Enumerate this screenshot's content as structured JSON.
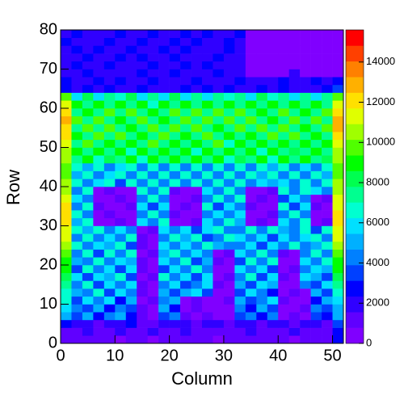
{
  "chart_data": {
    "type": "heatmap",
    "xlabel": "Column",
    "ylabel": "Row",
    "xlim": [
      0,
      52
    ],
    "ylim": [
      0,
      80
    ],
    "xticks": [
      0,
      10,
      20,
      30,
      40,
      50
    ],
    "yticks": [
      0,
      10,
      20,
      30,
      40,
      50,
      60,
      70,
      80
    ],
    "zlim": [
      0,
      15600
    ],
    "zticks": [
      0,
      2000,
      4000,
      6000,
      8000,
      10000,
      12000,
      14000
    ],
    "palette": [
      "#8000ff",
      "#6000ff",
      "#3000ff",
      "#0000ff",
      "#0040ff",
      "#0080ff",
      "#00b0ff",
      "#00e0ff",
      "#00ffd0",
      "#00ff90",
      "#00ff50",
      "#00ff00",
      "#50ff00",
      "#a0ff00",
      "#e0ff00",
      "#ffe000",
      "#ffb000",
      "#ff8000",
      "#ff4000",
      "#ff0000"
    ],
    "z": [
      [
        900,
        1200,
        800,
        1500,
        1100,
        700,
        1300,
        900,
        600,
        1000,
        1400,
        800,
        1200,
        900,
        700,
        1100,
        1300,
        800,
        1000,
        1500,
        900,
        700,
        1200,
        1000,
        800,
        2400
      ],
      [
        1500,
        1100,
        1800,
        1300,
        900,
        1600,
        1200,
        1000,
        2200,
        1400,
        800,
        1700,
        1100,
        1300,
        1500,
        900,
        1200,
        1600,
        1000,
        1400,
        1100,
        1800,
        900,
        1300,
        1200,
        2800
      ],
      [
        2600,
        1800,
        2200,
        1500,
        2000,
        1700,
        2400,
        900,
        1300,
        1900,
        1600,
        2100,
        1400,
        1800,
        2300,
        1500,
        2000,
        1700,
        1400,
        2200,
        1800,
        1300,
        1600,
        2000,
        1500,
        3200
      ],
      [
        5200,
        3400,
        4800,
        2600,
        3900,
        5200,
        3100,
        800,
        700,
        3600,
        4200,
        900,
        700,
        800,
        600,
        700,
        3200,
        4600,
        2800,
        3900,
        600,
        800,
        700,
        3500,
        2900,
        4800
      ],
      [
        5800,
        4600,
        3200,
        5400,
        2800,
        4400,
        3700,
        900,
        600,
        4800,
        3000,
        700,
        800,
        600,
        700,
        600,
        4400,
        2700,
        5000,
        3300,
        700,
        600,
        900,
        4100,
        3600,
        5400
      ],
      [
        6400,
        3800,
        5600,
        4200,
        6000,
        3000,
        5100,
        700,
        800,
        3900,
        5300,
        600,
        900,
        700,
        600,
        800,
        5200,
        3600,
        4300,
        6100,
        800,
        700,
        600,
        2900,
        4700,
        6200
      ],
      [
        7000,
        5200,
        4000,
        6300,
        3600,
        5700,
        4400,
        800,
        700,
        5000,
        3500,
        4800,
        6200,
        3300,
        700,
        600,
        3700,
        5900,
        4100,
        3000,
        600,
        800,
        700,
        5300,
        3800,
        6800
      ],
      [
        7600,
        4100,
        6600,
        3500,
        5900,
        4300,
        6100,
        900,
        600,
        4200,
        6000,
        3700,
        4500,
        5600,
        800,
        700,
        5400,
        3300,
        6200,
        4700,
        700,
        600,
        4300,
        3600,
        5900,
        7400
      ],
      [
        8200,
        6100,
        3700,
        5800,
        4900,
        6500,
        3400,
        700,
        800,
        6300,
        3900,
        5500,
        3200,
        6100,
        600,
        800,
        4000,
        6400,
        3500,
        5600,
        800,
        700,
        5800,
        4900,
        3700,
        8000
      ],
      [
        8600,
        3600,
        6900,
        4400,
        6200,
        3800,
        5500,
        800,
        700,
        3700,
        5800,
        4300,
        6600,
        3900,
        700,
        600,
        6100,
        4300,
        5700,
        3800,
        600,
        800,
        3900,
        6200,
        5100,
        8600
      ],
      [
        9200,
        5400,
        4500,
        7000,
        3900,
        5900,
        4700,
        900,
        600,
        5500,
        4200,
        6300,
        3800,
        5400,
        800,
        700,
        3700,
        6600,
        4200,
        6300,
        700,
        600,
        5700,
        4100,
        6500,
        9200
      ],
      [
        9800,
        4600,
        6300,
        3800,
        6700,
        4100,
        6400,
        700,
        800,
        4800,
        6600,
        3900,
        5900,
        4400,
        600,
        800,
        5800,
        3900,
        6800,
        4500,
        800,
        700,
        4600,
        6700,
        4200,
        9600
      ],
      [
        10400,
        6500,
        3900,
        6000,
        4800,
        6800,
        3700,
        800,
        700,
        6200,
        4000,
        5700,
        4300,
        6500,
        5300,
        3900,
        4500,
        6200,
        3800,
        5900,
        4200,
        6400,
        3900,
        5100,
        6800,
        10400
      ],
      [
        11000,
        4200,
        6900,
        4600,
        5900,
        3900,
        6300,
        900,
        600,
        4100,
        6400,
        4800,
        6600,
        3800,
        4400,
        6300,
        6200,
        4000,
        5700,
        3600,
        6100,
        4300,
        5800,
        6400,
        4500,
        11000
      ],
      [
        11600,
        6300,
        4800,
        6700,
        3900,
        5600,
        4400,
        700,
        800,
        5800,
        4600,
        6200,
        3700,
        5900,
        6700,
        4100,
        3900,
        6600,
        4500,
        6300,
        4800,
        3900,
        6300,
        3800,
        6400,
        11200
      ],
      [
        12000,
        4800,
        6500,
        700,
        600,
        800,
        700,
        5900,
        4100,
        6400,
        700,
        600,
        800,
        5600,
        4300,
        6800,
        4900,
        700,
        800,
        600,
        5700,
        4100,
        6300,
        700,
        800,
        11800
      ],
      [
        12400,
        6600,
        4200,
        600,
        800,
        700,
        600,
        4300,
        6600,
        3900,
        800,
        700,
        600,
        4200,
        6200,
        3900,
        6100,
        600,
        700,
        800,
        4300,
        6300,
        4000,
        600,
        700,
        12200
      ],
      [
        12000,
        4300,
        6800,
        800,
        700,
        600,
        800,
        6200,
        3800,
        6100,
        600,
        800,
        700,
        6400,
        3800,
        5900,
        4100,
        800,
        600,
        700,
        6400,
        3700,
        5900,
        800,
        600,
        11600
      ],
      [
        11400,
        6200,
        4500,
        700,
        600,
        800,
        700,
        4500,
        6400,
        4300,
        700,
        600,
        800,
        3900,
        6600,
        4200,
        6300,
        700,
        800,
        600,
        3800,
        6100,
        4400,
        700,
        800,
        11000
      ],
      [
        10800,
        4600,
        6300,
        600,
        800,
        700,
        600,
        6600,
        4200,
        6500,
        800,
        700,
        600,
        6200,
        4100,
        6400,
        4400,
        600,
        700,
        800,
        6300,
        4200,
        6600,
        5800,
        4300,
        10600
      ],
      [
        10400,
        6400,
        4300,
        5500,
        6400,
        3700,
        6700,
        4300,
        6900,
        4100,
        6300,
        4600,
        6800,
        3900,
        6500,
        4200,
        6700,
        4400,
        6100,
        4700,
        6200,
        4500,
        6900,
        4100,
        6300,
        10200
      ],
      [
        10000,
        4900,
        6900,
        4100,
        5800,
        6900,
        4200,
        6700,
        4400,
        6500,
        4300,
        6800,
        4200,
        6400,
        4600,
        6900,
        4100,
        6500,
        4800,
        6300,
        4400,
        6700,
        4300,
        6600,
        4700,
        9800
      ],
      [
        9800,
        6600,
        4700,
        6800,
        4300,
        6000,
        7000,
        4500,
        6800,
        4600,
        6900,
        4400,
        6700,
        4600,
        6600,
        4300,
        6900,
        4500,
        6300,
        4700,
        6800,
        4600,
        6200,
        4400,
        6900,
        9600
      ],
      [
        10200,
        7200,
        8800,
        6900,
        8500,
        7500,
        9100,
        6800,
        8700,
        7300,
        9000,
        7100,
        8600,
        7400,
        8900,
        6900,
        8400,
        7600,
        9200,
        7000,
        8600,
        7300,
        8800,
        7100,
        8500,
        10400
      ],
      [
        10600,
        8900,
        7100,
        9300,
        7400,
        8700,
        7000,
        9100,
        7300,
        8800,
        7500,
        9300,
        6900,
        8800,
        7200,
        9000,
        7400,
        8700,
        7000,
        9100,
        7300,
        8500,
        7200,
        9000,
        7400,
        10800
      ],
      [
        11200,
        7300,
        9400,
        7600,
        9200,
        7100,
        9000,
        7500,
        9400,
        7100,
        8900,
        7400,
        9200,
        7300,
        9500,
        7000,
        9100,
        7400,
        8800,
        7600,
        9300,
        7100,
        8900,
        7500,
        9100,
        11400
      ],
      [
        11800,
        9300,
        7500,
        9600,
        7200,
        9400,
        7600,
        9200,
        7300,
        9600,
        7400,
        9100,
        7600,
        9500,
        7200,
        9300,
        7500,
        9000,
        7300,
        9400,
        7200,
        9600,
        7500,
        9200,
        7300,
        12000
      ],
      [
        12400,
        7600,
        9500,
        7300,
        9800,
        7500,
        9300,
        7600,
        9700,
        7200,
        9400,
        7700,
        9600,
        7400,
        9200,
        7600,
        9800,
        7300,
        9500,
        7400,
        9700,
        7600,
        9300,
        7500,
        9600,
        12600
      ],
      [
        13000,
        9400,
        7300,
        9700,
        7600,
        9200,
        7500,
        9800,
        7400,
        9300,
        7700,
        9500,
        7300,
        9600,
        7500,
        9400,
        7200,
        9700,
        7600,
        9300,
        7400,
        9500,
        7700,
        9400,
        7200,
        13200
      ],
      [
        12200,
        7700,
        9300,
        7500,
        9600,
        7300,
        9500,
        7400,
        9100,
        7600,
        9700,
        7300,
        9400,
        7600,
        9800,
        7300,
        9500,
        7600,
        9200,
        7400,
        9600,
        7300,
        9100,
        7600,
        9500,
        12400
      ],
      [
        11400,
        8800,
        7100,
        9200,
        7300,
        8900,
        7400,
        9100,
        7000,
        8800,
        7300,
        9200,
        7100,
        9000,
        7400,
        8700,
        7200,
        9100,
        7500,
        8900,
        7100,
        9300,
        7400,
        8800,
        7200,
        11600
      ],
      [
        9600,
        6200,
        7800,
        5900,
        7500,
        6300,
        7900,
        6100,
        7600,
        5800,
        8000,
        6200,
        7400,
        6000,
        7700,
        6300,
        7500,
        5900,
        7800,
        6400,
        7300,
        6100,
        7700,
        6000,
        7400,
        9800
      ],
      [
        3000,
        2000,
        2400,
        1800,
        2600,
        2200,
        1900,
        2500,
        2100,
        2300,
        1700,
        2700,
        2000,
        2400,
        1900,
        2600,
        2200,
        1800,
        2500,
        2100,
        2800,
        2300,
        1900,
        2200,
        2400,
        3200
      ],
      [
        2600,
        2300,
        1700,
        2500,
        2000,
        2400,
        2200,
        1800,
        2600,
        1900,
        2300,
        2100,
        2500,
        1800,
        2200,
        2000,
        2400,
        2100,
        1900,
        2300,
        2500,
        1800,
        2100,
        2400,
        2000,
        2800
      ],
      [
        2200,
        1900,
        2400,
        2100,
        1800,
        2300,
        2000,
        2500,
        1700,
        2200,
        2600,
        1900,
        2300,
        2100,
        2400,
        1800,
        2000,
        500,
        400,
        600,
        500,
        1900,
        500,
        400,
        600,
        700
      ],
      [
        2000,
        2500,
        2100,
        1700,
        2400,
        1900,
        2300,
        2000,
        2600,
        2100,
        1800,
        2400,
        2000,
        2500,
        1900,
        2300,
        2100,
        400,
        600,
        500,
        400,
        500,
        600,
        500,
        400,
        600
      ],
      [
        2300,
        1800,
        2600,
        2200,
        2000,
        2500,
        1800,
        2400,
        2100,
        1900,
        2500,
        2200,
        1800,
        2300,
        2600,
        2000,
        2300,
        500,
        400,
        600,
        500,
        400,
        500,
        600,
        500,
        400
      ],
      [
        1900,
        2400,
        2000,
        2500,
        2200,
        1800,
        2600,
        2100,
        1900,
        2400,
        2000,
        2600,
        2300,
        1900,
        2100,
        2500,
        1900,
        600,
        500,
        400,
        600,
        500,
        400,
        500,
        600,
        500
      ],
      [
        2500,
        2100,
        2300,
        1900,
        2600,
        2200,
        2000,
        2400,
        2300,
        1800,
        2400,
        2000,
        2500,
        2200,
        1800,
        2400,
        2200,
        400,
        600,
        500,
        400,
        600,
        500,
        400,
        500,
        600
      ],
      [
        1600,
        2800,
        1900,
        2300,
        2100,
        2600,
        1900,
        2200,
        2500,
        2000,
        2200,
        2700,
        2000,
        2400,
        2300,
        1900,
        2600,
        500,
        400,
        600,
        500,
        400,
        600,
        500,
        400,
        500
      ]
    ]
  }
}
